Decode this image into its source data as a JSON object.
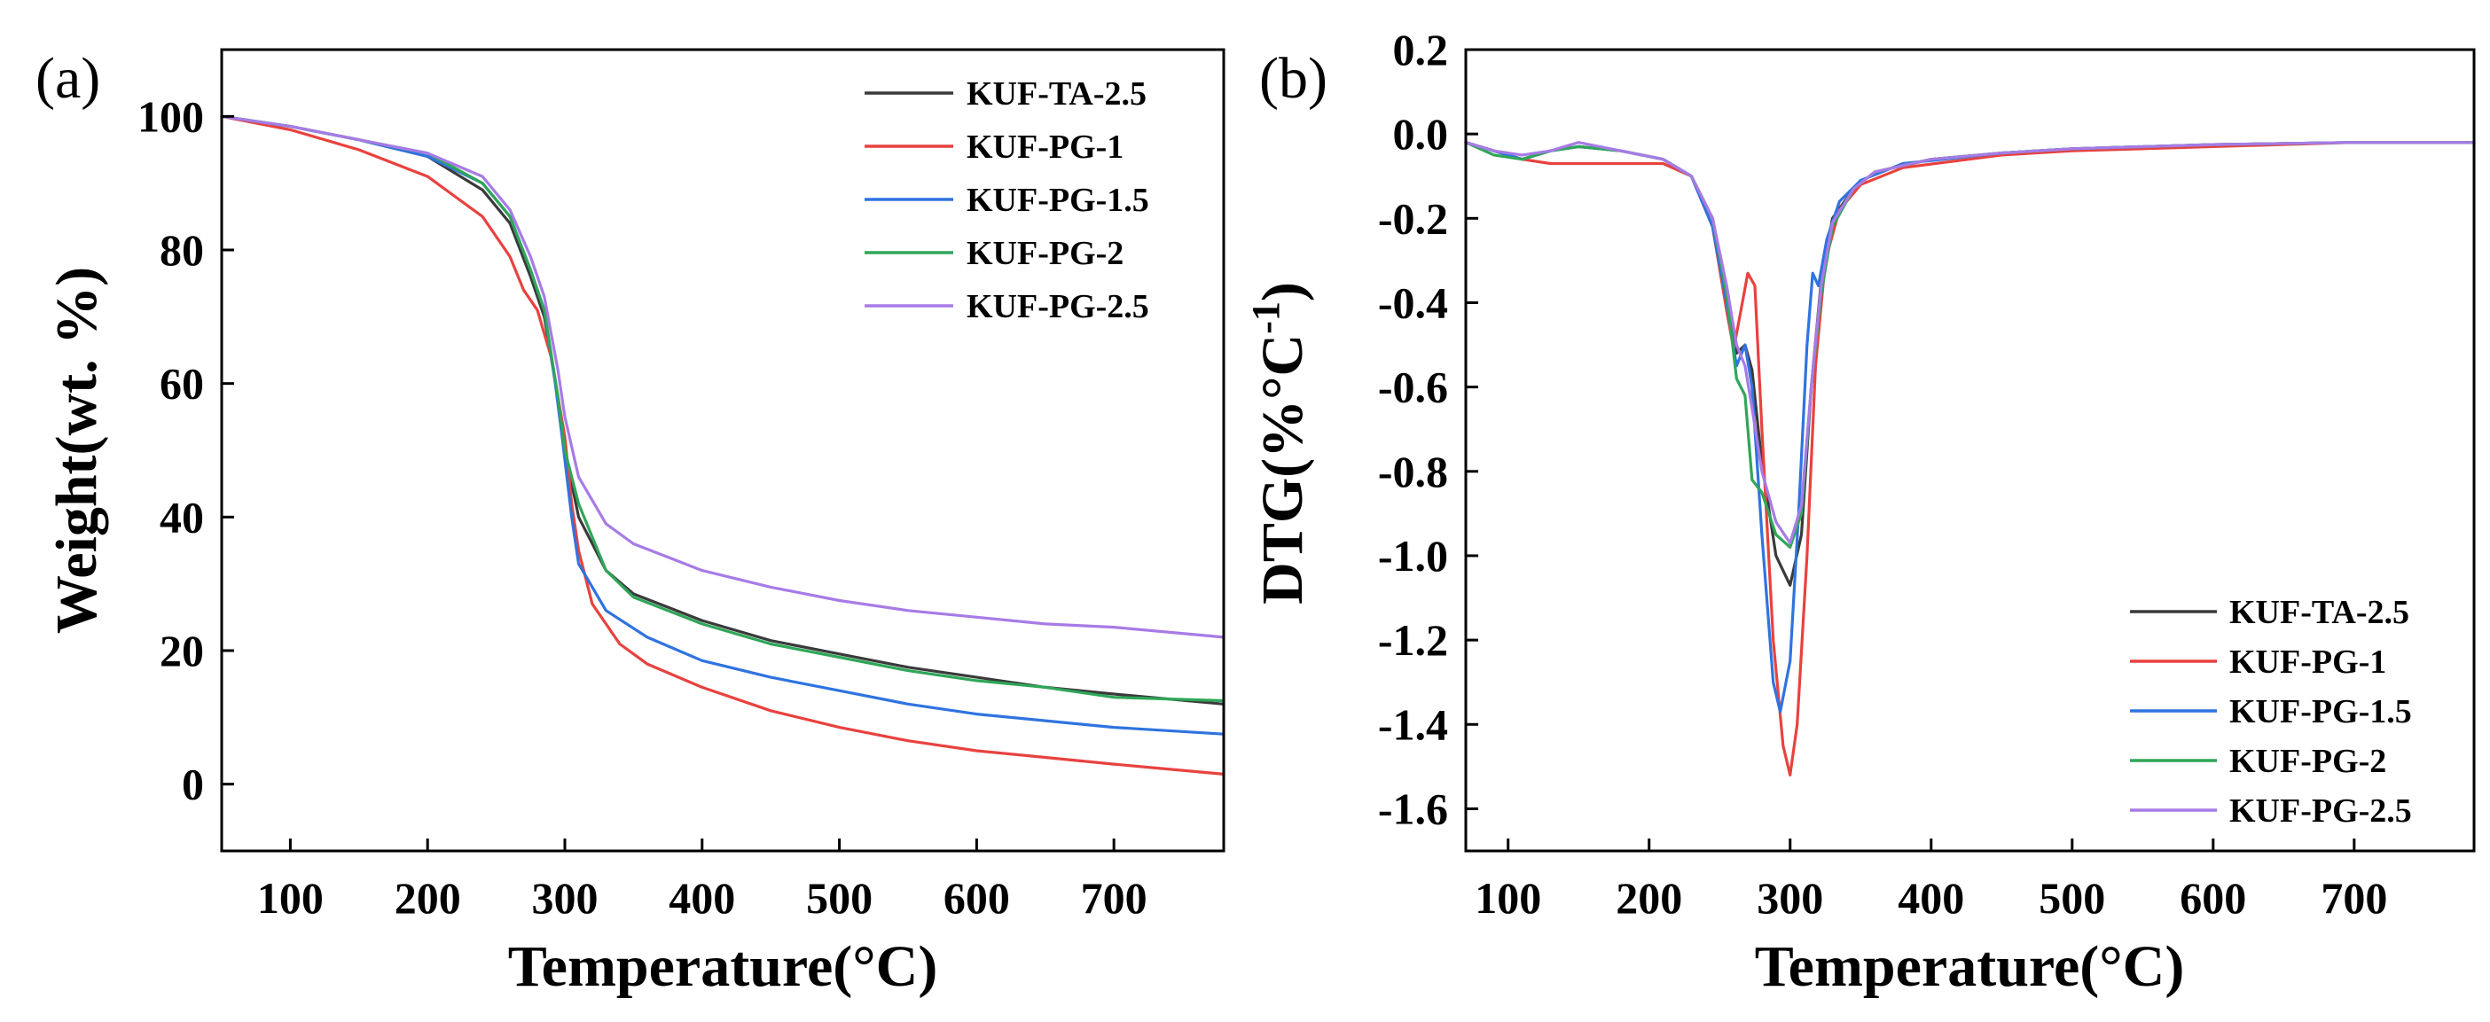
{
  "figure": {
    "charts": [
      {
        "id": "tga",
        "panel_label": "(a)",
        "xlabel": "Temperature(°C)",
        "ylabel": "Weight(wt. %)",
        "xlim": [
          50,
          780
        ],
        "ylim": [
          -10,
          110
        ],
        "xticks": [
          "100",
          "200",
          "300",
          "400",
          "500",
          "600",
          "700"
        ],
        "yticks": [
          "0",
          "20",
          "40",
          "60",
          "80",
          "100"
        ],
        "legend_position": "top-right"
      },
      {
        "id": "dtg",
        "panel_label": "(b)",
        "xlabel": "Temperature(°C)",
        "ylabel": "DTG(%°C",
        "ylabel_superscript": "-1",
        "ylabel_close": ")",
        "xlim": [
          70,
          785
        ],
        "ylim": [
          -1.7,
          0.2
        ],
        "xticks": [
          "100",
          "200",
          "300",
          "400",
          "500",
          "600",
          "700"
        ],
        "yticks": [
          "0.2",
          "0.0",
          "-0.2",
          "-0.4",
          "-0.6",
          "-0.8",
          "-1.0",
          "-1.2",
          "-1.4",
          "-1.6"
        ],
        "legend_position": "bottom-right"
      }
    ]
  },
  "chart_data": [
    {
      "type": "line",
      "title": "",
      "xlabel": "Temperature(°C)",
      "ylabel": "Weight(wt. %)",
      "xlim": [
        50,
        780
      ],
      "ylim": [
        -10,
        110
      ],
      "series": [
        {
          "name": "KUF-TA-2.5",
          "color": "#3a3a3a",
          "x": [
            50,
            100,
            150,
            200,
            240,
            260,
            275,
            285,
            295,
            300,
            310,
            330,
            350,
            400,
            450,
            500,
            550,
            600,
            650,
            700,
            780
          ],
          "y": [
            100,
            98.5,
            96.5,
            94,
            89,
            84,
            76,
            70,
            58,
            50,
            40,
            32,
            28.5,
            24.5,
            21.5,
            19.5,
            17.5,
            16,
            14.5,
            13.5,
            12
          ]
        },
        {
          "name": "KUF-PG-1",
          "color": "#e8423f",
          "x": [
            50,
            100,
            150,
            200,
            240,
            260,
            270,
            280,
            290,
            295,
            300,
            305,
            310,
            320,
            340,
            360,
            400,
            450,
            500,
            550,
            600,
            650,
            700,
            780
          ],
          "y": [
            100,
            98,
            95,
            91,
            85,
            79,
            74,
            71,
            64,
            58,
            52,
            42,
            35,
            27,
            21,
            18,
            14.5,
            11,
            8.5,
            6.5,
            5,
            4,
            3,
            1.5
          ]
        },
        {
          "name": "KUF-PG-1.5",
          "color": "#2f73e0",
          "x": [
            50,
            100,
            150,
            200,
            240,
            260,
            275,
            285,
            293,
            298,
            305,
            310,
            330,
            360,
            400,
            450,
            500,
            550,
            600,
            650,
            700,
            780
          ],
          "y": [
            100,
            98.5,
            96.5,
            94,
            90,
            85,
            77,
            71,
            60,
            52,
            40,
            33,
            26,
            22,
            18.5,
            16,
            14,
            12,
            10.5,
            9.5,
            8.5,
            7.5
          ]
        },
        {
          "name": "KUF-PG-2",
          "color": "#2fa659",
          "x": [
            50,
            100,
            150,
            200,
            240,
            260,
            275,
            285,
            295,
            300,
            310,
            330,
            350,
            400,
            450,
            500,
            550,
            600,
            650,
            700,
            780
          ],
          "y": [
            100,
            98.5,
            96.5,
            94.5,
            90,
            85,
            77,
            71,
            58,
            50,
            42,
            32,
            28,
            24,
            21,
            19,
            17,
            15.5,
            14.5,
            13,
            12.5
          ]
        },
        {
          "name": "KUF-PG-2.5",
          "color": "#a77be6",
          "x": [
            50,
            100,
            150,
            200,
            240,
            260,
            275,
            285,
            295,
            300,
            310,
            330,
            350,
            400,
            450,
            500,
            550,
            600,
            650,
            700,
            780
          ],
          "y": [
            100,
            98.5,
            96.5,
            94.5,
            91,
            86,
            79,
            73,
            62,
            55,
            46,
            39,
            36,
            32,
            29.5,
            27.5,
            26,
            25,
            24,
            23.5,
            22
          ]
        }
      ]
    },
    {
      "type": "line",
      "title": "",
      "xlabel": "Temperature(°C)",
      "ylabel": "DTG(%°C-1)",
      "xlim": [
        70,
        785
      ],
      "ylim": [
        -1.7,
        0.2
      ],
      "series": [
        {
          "name": "KUF-TA-2.5",
          "color": "#3a3a3a",
          "x": [
            70,
            90,
            110,
            130,
            150,
            180,
            210,
            230,
            245,
            255,
            262,
            268,
            273,
            280,
            290,
            300,
            308,
            315,
            322,
            330,
            345,
            360,
            400,
            450,
            500,
            600,
            700,
            785
          ],
          "y": [
            -0.02,
            -0.04,
            -0.06,
            -0.04,
            -0.03,
            -0.04,
            -0.06,
            -0.1,
            -0.2,
            -0.38,
            -0.52,
            -0.5,
            -0.56,
            -0.78,
            -1.0,
            -1.07,
            -0.95,
            -0.6,
            -0.35,
            -0.2,
            -0.13,
            -0.09,
            -0.06,
            -0.045,
            -0.035,
            -0.025,
            -0.02,
            -0.02
          ]
        },
        {
          "name": "KUF-PG-1",
          "color": "#e8423f",
          "x": [
            70,
            90,
            110,
            130,
            150,
            180,
            210,
            230,
            245,
            255,
            260,
            265,
            270,
            275,
            280,
            288,
            295,
            300,
            305,
            312,
            318,
            325,
            335,
            350,
            380,
            450,
            500,
            600,
            700,
            785
          ],
          "y": [
            -0.02,
            -0.04,
            -0.06,
            -0.07,
            -0.07,
            -0.07,
            -0.07,
            -0.1,
            -0.22,
            -0.42,
            -0.51,
            -0.42,
            -0.33,
            -0.36,
            -0.7,
            -1.2,
            -1.45,
            -1.52,
            -1.4,
            -1.0,
            -0.55,
            -0.3,
            -0.18,
            -0.12,
            -0.08,
            -0.05,
            -0.04,
            -0.03,
            -0.02,
            -0.02
          ]
        },
        {
          "name": "KUF-PG-1.5",
          "color": "#2f73e0",
          "x": [
            70,
            90,
            110,
            130,
            150,
            180,
            210,
            230,
            245,
            255,
            262,
            268,
            273,
            280,
            288,
            293,
            300,
            306,
            312,
            316,
            320,
            326,
            335,
            350,
            380,
            450,
            500,
            600,
            700,
            785
          ],
          "y": [
            -0.02,
            -0.04,
            -0.06,
            -0.04,
            -0.03,
            -0.04,
            -0.06,
            -0.1,
            -0.22,
            -0.4,
            -0.55,
            -0.5,
            -0.6,
            -0.95,
            -1.3,
            -1.37,
            -1.25,
            -0.9,
            -0.5,
            -0.33,
            -0.36,
            -0.25,
            -0.16,
            -0.11,
            -0.07,
            -0.045,
            -0.035,
            -0.025,
            -0.02,
            -0.02
          ]
        },
        {
          "name": "KUF-PG-2",
          "color": "#2fa659",
          "x": [
            70,
            90,
            110,
            130,
            150,
            180,
            210,
            230,
            245,
            255,
            262,
            268,
            273,
            280,
            290,
            300,
            308,
            315,
            322,
            330,
            345,
            360,
            400,
            450,
            500,
            600,
            700,
            785
          ],
          "y": [
            -0.02,
            -0.05,
            -0.06,
            -0.04,
            -0.03,
            -0.04,
            -0.06,
            -0.1,
            -0.2,
            -0.38,
            -0.58,
            -0.62,
            -0.82,
            -0.85,
            -0.95,
            -0.98,
            -0.9,
            -0.6,
            -0.38,
            -0.22,
            -0.13,
            -0.09,
            -0.06,
            -0.045,
            -0.035,
            -0.025,
            -0.02,
            -0.02
          ]
        },
        {
          "name": "KUF-PG-2.5",
          "color": "#a77be6",
          "x": [
            70,
            90,
            110,
            130,
            150,
            180,
            210,
            230,
            245,
            255,
            262,
            268,
            273,
            280,
            290,
            300,
            308,
            315,
            322,
            330,
            345,
            360,
            400,
            450,
            500,
            600,
            700,
            785
          ],
          "y": [
            -0.02,
            -0.04,
            -0.05,
            -0.04,
            -0.02,
            -0.04,
            -0.06,
            -0.1,
            -0.2,
            -0.36,
            -0.5,
            -0.55,
            -0.65,
            -0.8,
            -0.92,
            -0.97,
            -0.88,
            -0.6,
            -0.36,
            -0.21,
            -0.13,
            -0.09,
            -0.06,
            -0.045,
            -0.035,
            -0.025,
            -0.02,
            -0.02
          ]
        }
      ]
    }
  ]
}
